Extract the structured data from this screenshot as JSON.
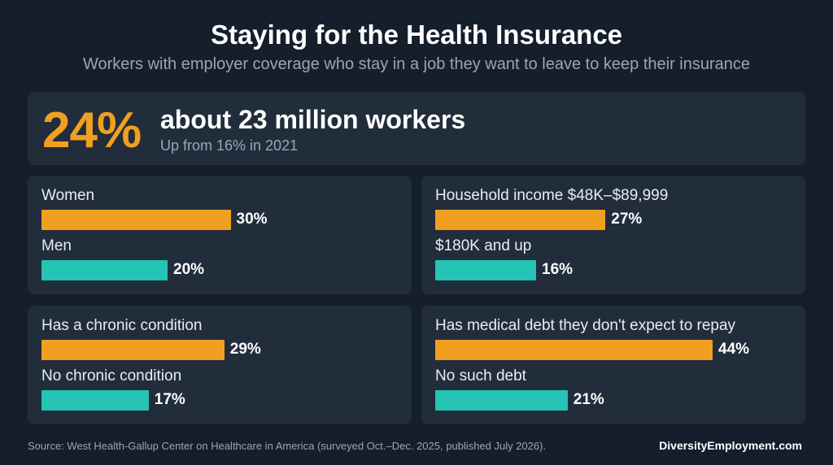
{
  "title": "Staying for the Health Insurance",
  "subtitle": "Workers with employer coverage who stay in a job they want to leave to keep their insurance",
  "headline": {
    "percent": "24%",
    "main": "about 23 million workers",
    "sub": "Up from 16% in 2021"
  },
  "colors": {
    "primary": "#f0a020",
    "secondary": "#25c4b4",
    "background": "#151e2b",
    "panel": "#222d3c"
  },
  "chart_data": [
    {
      "type": "bar",
      "orientation": "horizontal",
      "categories": [
        "Women",
        "Men"
      ],
      "values": [
        30,
        20
      ],
      "value_labels": [
        "30%",
        "20%"
      ],
      "unit": "%",
      "xlim": [
        0,
        50
      ]
    },
    {
      "type": "bar",
      "orientation": "horizontal",
      "categories": [
        "Household income $48K–$89,999",
        "$180K and up"
      ],
      "values": [
        27,
        16
      ],
      "value_labels": [
        "27%",
        "16%"
      ],
      "unit": "%",
      "xlim": [
        0,
        50
      ]
    },
    {
      "type": "bar",
      "orientation": "horizontal",
      "categories": [
        "Has a chronic condition",
        "No chronic condition"
      ],
      "values": [
        29,
        17
      ],
      "value_labels": [
        "29%",
        "17%"
      ],
      "unit": "%",
      "xlim": [
        0,
        50
      ]
    },
    {
      "type": "bar",
      "orientation": "horizontal",
      "categories": [
        "Has medical debt they don't expect to repay",
        "No such debt"
      ],
      "values": [
        44,
        21
      ],
      "value_labels": [
        "44%",
        "21%"
      ],
      "unit": "%",
      "xlim": [
        0,
        50
      ]
    }
  ],
  "footer": {
    "source": "Source: West Health-Gallup Center on Healthcare in America (surveyed Oct.–Dec. 2025, published July 2026).",
    "brand": "DiversityEmployment.com"
  }
}
